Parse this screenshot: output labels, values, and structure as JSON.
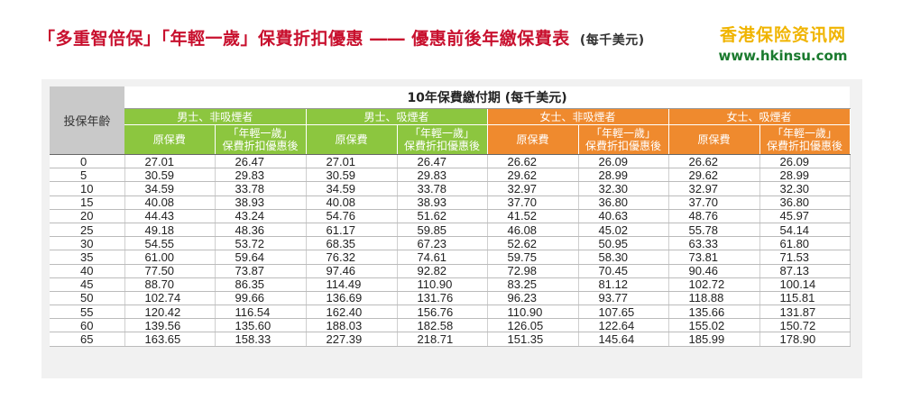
{
  "header": {
    "title": "「多重智倍保」「年輕一歲」保費折扣優惠 ―― 優惠前後年繳保費表",
    "title_note": "(每千美元)"
  },
  "brand": {
    "name": "香港保险资讯网",
    "url": "www.hkinsu.com"
  },
  "table": {
    "age_header": "投保年齡",
    "period_header": "10年保費繳付期 (每千美元)",
    "groups": [
      "男士、非吸煙者",
      "男士、吸煙者",
      "女士、非吸煙者",
      "女士、吸煙者"
    ],
    "sub_headers": {
      "original": "原保費",
      "discount_line1": "「年輕一歲」",
      "discount_line2": "保費折扣優惠後"
    },
    "rows": [
      {
        "age": "0",
        "v": [
          "27.01",
          "26.47",
          "27.01",
          "26.47",
          "26.62",
          "26.09",
          "26.62",
          "26.09"
        ]
      },
      {
        "age": "5",
        "v": [
          "30.59",
          "29.83",
          "30.59",
          "29.83",
          "29.62",
          "28.99",
          "29.62",
          "28.99"
        ]
      },
      {
        "age": "10",
        "v": [
          "34.59",
          "33.78",
          "34.59",
          "33.78",
          "32.97",
          "32.30",
          "32.97",
          "32.30"
        ]
      },
      {
        "age": "15",
        "v": [
          "40.08",
          "38.93",
          "40.08",
          "38.93",
          "37.70",
          "36.80",
          "37.70",
          "36.80"
        ]
      },
      {
        "age": "20",
        "v": [
          "44.43",
          "43.24",
          "54.76",
          "51.62",
          "41.52",
          "40.63",
          "48.76",
          "45.97"
        ]
      },
      {
        "age": "25",
        "v": [
          "49.18",
          "48.36",
          "61.17",
          "59.85",
          "46.08",
          "45.02",
          "55.78",
          "54.14"
        ]
      },
      {
        "age": "30",
        "v": [
          "54.55",
          "53.72",
          "68.35",
          "67.23",
          "52.62",
          "50.95",
          "63.33",
          "61.80"
        ]
      },
      {
        "age": "35",
        "v": [
          "61.00",
          "59.64",
          "76.32",
          "74.61",
          "59.75",
          "58.30",
          "73.81",
          "71.53"
        ]
      },
      {
        "age": "40",
        "v": [
          "77.50",
          "73.87",
          "97.46",
          "92.82",
          "72.98",
          "70.45",
          "90.46",
          "87.13"
        ]
      },
      {
        "age": "45",
        "v": [
          "88.70",
          "86.35",
          "114.49",
          "110.90",
          "83.25",
          "81.12",
          "102.72",
          "100.14"
        ]
      },
      {
        "age": "50",
        "v": [
          "102.74",
          "99.66",
          "136.69",
          "131.76",
          "96.23",
          "93.77",
          "118.88",
          "115.81"
        ]
      },
      {
        "age": "55",
        "v": [
          "120.42",
          "116.54",
          "162.40",
          "156.76",
          "110.90",
          "107.65",
          "135.66",
          "131.87"
        ]
      },
      {
        "age": "60",
        "v": [
          "139.56",
          "135.60",
          "188.03",
          "182.58",
          "126.05",
          "122.64",
          "155.02",
          "150.72"
        ]
      },
      {
        "age": "65",
        "v": [
          "163.65",
          "158.33",
          "227.39",
          "218.71",
          "151.35",
          "145.64",
          "185.99",
          "178.90"
        ]
      }
    ]
  },
  "colors": {
    "title": "#c8102e",
    "green": "#8cc63f",
    "orange": "#ef8a2e",
    "brand_cn": "#f0b400",
    "brand_url": "#1a7a2e"
  }
}
